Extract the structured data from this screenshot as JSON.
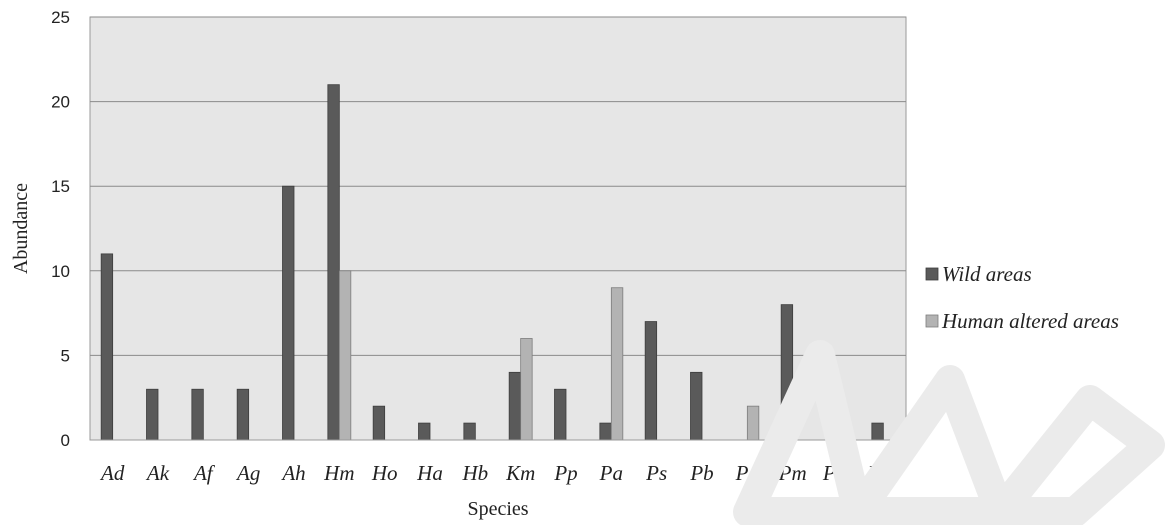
{
  "chart_data": {
    "type": "bar",
    "title": "",
    "xlabel": "Species",
    "ylabel": "Abundance",
    "ylim": [
      0,
      25
    ],
    "yticks": [
      0,
      5,
      10,
      15,
      20,
      25
    ],
    "grid": true,
    "legend_position": "right",
    "categories": [
      "Ad",
      "Ak",
      "Af",
      "Ag",
      "Ah",
      "Hm",
      "Ho",
      "Ha",
      "Hb",
      "Km",
      "Pp",
      "Pa",
      "Ps",
      "Pb",
      "Pg",
      "Pm",
      "Psc",
      "Psu"
    ],
    "series": [
      {
        "name": "Wild areas",
        "color": "#5a5a5a",
        "values": [
          11,
          3,
          3,
          3,
          15,
          21,
          2,
          1,
          1,
          4,
          3,
          1,
          7,
          4,
          0,
          8,
          3,
          1
        ]
      },
      {
        "name": "Human altered areas",
        "color": "#b3b3b3",
        "values": [
          0,
          0,
          0,
          0,
          0,
          10,
          0,
          0,
          0,
          6,
          0,
          9,
          0,
          0,
          2,
          0,
          0,
          0
        ]
      }
    ],
    "plot_background": "#e6e6e6",
    "watermark_color": "#ebebeb"
  }
}
